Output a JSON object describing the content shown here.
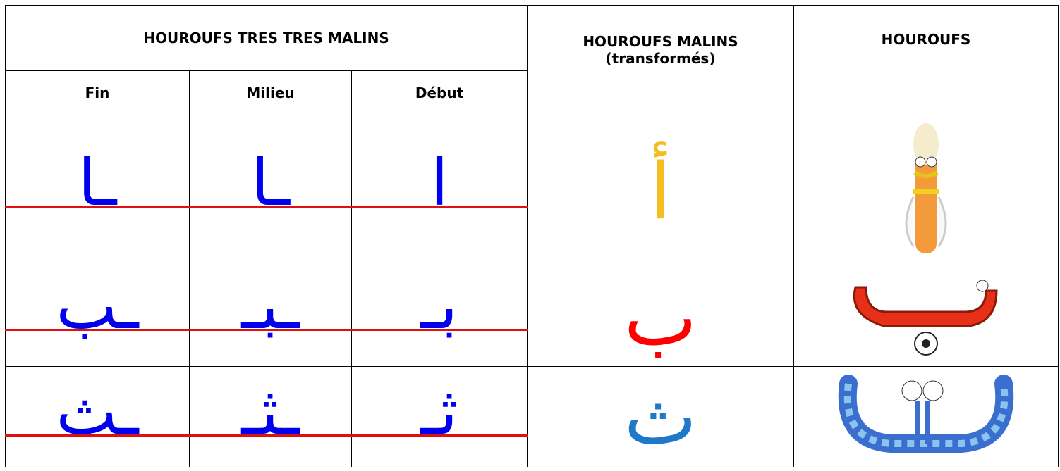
{
  "header": {
    "group_title": "HOUROUFS TRES TRES MALINS",
    "columns": [
      "Fin",
      "Milieu",
      "Début"
    ],
    "malins": "HOUROUFS MALINS",
    "malins_note": "(transformés)",
    "hourouf": "HOUROUFS"
  },
  "rows": [
    {
      "forms": [
        "ـا",
        "ـا",
        "ا"
      ],
      "malin": "أ",
      "malin_color": "#f5bd1f"
    },
    {
      "forms": [
        "ـب",
        "ـبـ",
        "بـ"
      ],
      "malin": "ب",
      "malin_color": "#ff0000"
    },
    {
      "forms": [
        "ـث",
        "ـثـ",
        "ثـ"
      ],
      "malin": "ث",
      "malin_color": "#1f78c8"
    }
  ]
}
